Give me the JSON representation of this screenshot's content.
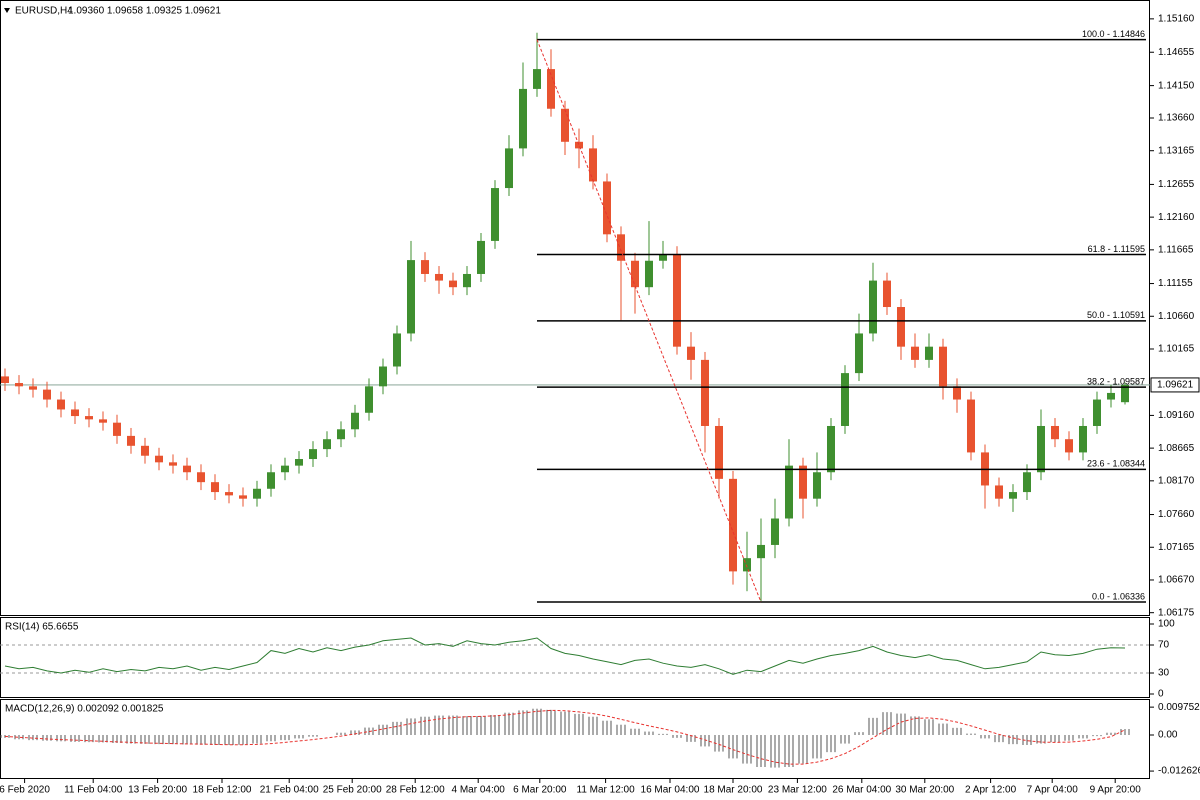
{
  "chart_data": [
    {
      "type": "candlestick",
      "title": "EURUSD,H4",
      "subtitle": "1.09360 1.09658 1.09325 1.09621",
      "up_color": "#3f8f2f",
      "down_color": "#e8532f",
      "xlim": [
        -0.357,
        81.786
      ],
      "xticks": [
        {
          "value": 1.4,
          "label": "6 Feb 2020"
        },
        {
          "value": 6.3,
          "label": "11 Feb 04:00"
        },
        {
          "value": 10.9,
          "label": "13 Feb 20:00"
        },
        {
          "value": 15.5,
          "label": "18 Feb 12:00"
        },
        {
          "value": 20.3,
          "label": "21 Feb 04:00"
        },
        {
          "value": 24.8,
          "label": "25 Feb 20:00"
        },
        {
          "value": 29.3,
          "label": "28 Feb 12:00"
        },
        {
          "value": 33.8,
          "label": "4 Mar 04:00"
        },
        {
          "value": 38.2,
          "label": "6 Mar 20:00"
        },
        {
          "value": 42.9,
          "label": "11 Mar 12:00"
        },
        {
          "value": 47.5,
          "label": "16 Mar 04:00"
        },
        {
          "value": 52.0,
          "label": "18 Mar 20:00"
        },
        {
          "value": 56.6,
          "label": "23 Mar 12:00"
        },
        {
          "value": 61.2,
          "label": "26 Mar 04:00"
        },
        {
          "value": 65.7,
          "label": "30 Mar 20:00"
        },
        {
          "value": 70.4,
          "label": "2 Apr 12:00"
        },
        {
          "value": 74.8,
          "label": "7 Apr 04:00"
        },
        {
          "value": 79.3,
          "label": "9 Apr 20:00"
        }
      ],
      "ylim": [
        1.0614,
        1.154
      ],
      "yticks": [
        {
          "value": 1.1516,
          "label": "1.15160"
        },
        {
          "value": 1.14655,
          "label": "1.14655"
        },
        {
          "value": 1.1415,
          "label": "1.14150"
        },
        {
          "value": 1.1366,
          "label": "1.13660"
        },
        {
          "value": 1.13165,
          "label": "1.13165"
        },
        {
          "value": 1.12655,
          "label": "1.12655"
        },
        {
          "value": 1.1216,
          "label": "1.12160"
        },
        {
          "value": 1.11665,
          "label": "1.11665"
        },
        {
          "value": 1.11155,
          "label": "1.11155"
        },
        {
          "value": 1.1066,
          "label": "1.10660"
        },
        {
          "value": 1.10165,
          "label": "1.10165"
        },
        {
          "value": 1.0916,
          "label": "1.09160"
        },
        {
          "value": 1.08665,
          "label": "1.08665"
        },
        {
          "value": 1.0817,
          "label": "1.08170"
        },
        {
          "value": 1.0766,
          "label": "1.07660"
        },
        {
          "value": 1.07165,
          "label": "1.07165"
        },
        {
          "value": 1.0667,
          "label": "1.06670"
        },
        {
          "value": 1.06175,
          "label": "1.06175"
        }
      ],
      "current_price": {
        "value": 1.09621,
        "label": "1.09621"
      },
      "open": [
        1.0975,
        1.0965,
        1.096,
        1.0955,
        1.094,
        1.0925,
        1.0915,
        1.091,
        1.0905,
        1.0885,
        1.087,
        1.0855,
        1.0845,
        1.084,
        1.083,
        1.0815,
        1.08,
        1.0795,
        1.079,
        1.0805,
        1.083,
        1.084,
        1.085,
        1.0865,
        1.088,
        1.0895,
        1.092,
        1.096,
        1.099,
        1.104,
        1.1151,
        1.113,
        1.112,
        1.111,
        1.113,
        1.118,
        1.126,
        1.132,
        1.141,
        1.144,
        1.138,
        1.133,
        1.132,
        1.127,
        1.119,
        1.115,
        1.111,
        1.115,
        1.116,
        1.102,
        1.1,
        1.09,
        1.082,
        1.068,
        1.07,
        1.072,
        1.076,
        1.084,
        1.079,
        1.083,
        1.09,
        1.098,
        1.104,
        1.112,
        1.108,
        1.102,
        1.1,
        1.102,
        1.096,
        1.094,
        1.086,
        1.081,
        1.079,
        1.08,
        1.083,
        1.09,
        1.088,
        1.086,
        1.09,
        1.094,
        1.0936
      ],
      "high": [
        1.0987,
        1.0977,
        1.0972,
        1.0967,
        1.0952,
        1.0937,
        1.0927,
        1.0922,
        1.0917,
        1.0897,
        1.0882,
        1.0867,
        1.0857,
        1.0852,
        1.0842,
        1.0827,
        1.0812,
        1.0807,
        1.0817,
        1.0842,
        1.0852,
        1.0862,
        1.0877,
        1.0892,
        1.0907,
        1.0932,
        1.0972,
        1.1002,
        1.1052,
        1.118,
        1.1163,
        1.1142,
        1.1132,
        1.1142,
        1.1192,
        1.1272,
        1.134,
        1.145,
        1.1495,
        1.147,
        1.1392,
        1.135,
        1.134,
        1.1282,
        1.1202,
        1.1162,
        1.121,
        1.118,
        1.1172,
        1.1042,
        1.1012,
        1.0912,
        1.0832,
        1.074,
        1.076,
        1.079,
        1.088,
        1.0852,
        1.086,
        1.0912,
        1.0992,
        1.107,
        1.1147,
        1.1132,
        1.1092,
        1.104,
        1.104,
        1.1032,
        1.0972,
        1.0952,
        1.0872,
        1.0822,
        1.0812,
        1.0842,
        1.0925,
        1.0912,
        1.0892,
        1.0912,
        1.0952,
        1.0962,
        1.09658
      ],
      "low": [
        1.0953,
        1.0948,
        1.0943,
        1.0928,
        1.0913,
        1.0903,
        1.0898,
        1.0893,
        1.0873,
        1.0858,
        1.0843,
        1.0833,
        1.0828,
        1.0818,
        1.0803,
        1.0788,
        1.0783,
        1.0778,
        1.0778,
        1.0793,
        1.0818,
        1.0828,
        1.0838,
        1.0853,
        1.0868,
        1.0883,
        1.0908,
        1.0948,
        1.0978,
        1.1028,
        1.1118,
        1.11,
        1.1098,
        1.1098,
        1.1118,
        1.1168,
        1.1248,
        1.1308,
        1.1398,
        1.1368,
        1.131,
        1.129,
        1.1258,
        1.1178,
        1.106,
        1.107,
        1.1098,
        1.1138,
        1.1008,
        1.097,
        1.086,
        1.079,
        1.066,
        1.065,
        1.0634,
        1.07,
        1.0748,
        1.076,
        1.0778,
        1.0818,
        1.0888,
        1.0968,
        1.1028,
        1.1068,
        1.1,
        1.0988,
        1.0988,
        1.094,
        1.092,
        1.0848,
        1.0775,
        1.0778,
        1.077,
        1.0788,
        1.0818,
        1.0868,
        1.0848,
        1.0848,
        1.0888,
        1.0928,
        1.09325
      ],
      "close": [
        1.0965,
        1.096,
        1.0955,
        1.094,
        1.0925,
        1.0915,
        1.091,
        1.0905,
        1.0885,
        1.087,
        1.0855,
        1.0845,
        1.084,
        1.083,
        1.0815,
        1.08,
        1.0795,
        1.079,
        1.0805,
        1.083,
        1.084,
        1.085,
        1.0865,
        1.088,
        1.0895,
        1.092,
        1.096,
        1.099,
        1.104,
        1.1151,
        1.113,
        1.112,
        1.111,
        1.113,
        1.118,
        1.126,
        1.132,
        1.141,
        1.144,
        1.138,
        1.133,
        1.132,
        1.127,
        1.119,
        1.115,
        1.111,
        1.115,
        1.116,
        1.102,
        1.1,
        1.09,
        1.082,
        1.068,
        1.07,
        1.072,
        1.076,
        1.084,
        1.079,
        1.083,
        1.09,
        1.098,
        1.104,
        1.112,
        1.108,
        1.102,
        1.1,
        1.102,
        1.096,
        1.094,
        1.086,
        1.081,
        1.079,
        1.08,
        1.083,
        1.09,
        1.088,
        1.086,
        1.09,
        1.094,
        1.095,
        1.09621
      ],
      "trend_line": {
        "x": [
          38,
          54
        ],
        "y": [
          1.14846,
          1.06336
        ],
        "color": "#e8332f"
      },
      "fib_levels": [
        {
          "value": 1.14846,
          "label": "100.0 - 1.14846"
        },
        {
          "value": 1.11595,
          "label": "61.8 - 1.11595"
        },
        {
          "value": 1.10591,
          "label": "50.0 - 1.10591"
        },
        {
          "value": 1.09587,
          "label": "38.2 - 1.09587"
        },
        {
          "value": 1.08344,
          "label": "23.6 - 1.08344"
        },
        {
          "value": 1.06336,
          "label": "0.0 - 1.06336"
        }
      ]
    },
    {
      "type": "line",
      "title": "RSI(14) 65.6655",
      "color": "#2e7d32",
      "ylim": [
        0,
        100
      ],
      "yticks": [
        100,
        70,
        30,
        0
      ],
      "levels": [
        70,
        30
      ],
      "values": [
        40,
        36,
        38,
        33,
        30,
        34,
        31,
        36,
        32,
        35,
        33,
        38,
        36,
        40,
        34,
        38,
        35,
        40,
        45,
        62,
        58,
        65,
        60,
        66,
        62,
        67,
        70,
        76,
        78,
        80,
        70,
        72,
        68,
        76,
        72,
        70,
        74,
        76,
        80,
        65,
        58,
        55,
        50,
        46,
        42,
        48,
        50,
        44,
        40,
        38,
        42,
        36,
        28,
        34,
        32,
        40,
        48,
        44,
        50,
        55,
        58,
        62,
        68,
        60,
        55,
        52,
        56,
        50,
        48,
        42,
        36,
        38,
        42,
        46,
        60,
        56,
        55,
        58,
        64,
        66,
        65.6655
      ]
    },
    {
      "type": "macd",
      "title": "MACD(12,26,9) 0.002092 0.001825",
      "ylim": [
        -0.0147,
        0.0119
      ],
      "yticks": [
        0.009752,
        {
          "value": 0,
          "label": "0.00"
        },
        -0.012626
      ],
      "series": [
        {
          "color": "#555555",
          "values": [
            -0.001,
            -0.0015,
            -0.0018,
            -0.002,
            -0.0022,
            -0.0024,
            -0.0025,
            -0.0026,
            -0.0028,
            -0.003,
            -0.0031,
            -0.0032,
            -0.0032,
            -0.0033,
            -0.0034,
            -0.0035,
            -0.0035,
            -0.0034,
            -0.003,
            -0.0022,
            -0.0018,
            -0.0012,
            -0.0006,
            0.0,
            0.0008,
            0.0016,
            0.0026,
            0.0036,
            0.0046,
            0.0058,
            0.0064,
            0.0068,
            0.0068,
            0.0066,
            0.0066,
            0.007,
            0.0078,
            0.0086,
            0.0092,
            0.0088,
            0.0082,
            0.0074,
            0.0064,
            0.005,
            0.0036,
            0.0022,
            0.0012,
            0.0004,
            -0.001,
            -0.0024,
            -0.004,
            -0.0058,
            -0.0082,
            -0.01,
            -0.0112,
            -0.0114,
            -0.0112,
            -0.01,
            -0.0082,
            -0.006,
            -0.003,
            0.001,
            0.006,
            0.008,
            0.0075,
            0.0065,
            0.0055,
            0.004,
            0.0025,
            0.0005,
            -0.0012,
            -0.0025,
            -0.0032,
            -0.0035,
            -0.003,
            -0.0025,
            -0.002,
            -0.0012,
            -0.0004,
            0.0008,
            0.002092
          ]
        },
        {
          "color": "#e8332f",
          "values": [
            -0.0005,
            -0.0008,
            -0.0011,
            -0.0014,
            -0.0016,
            -0.0018,
            -0.002,
            -0.0022,
            -0.0024,
            -0.0026,
            -0.0028,
            -0.0029,
            -0.003,
            -0.0031,
            -0.0032,
            -0.0033,
            -0.0034,
            -0.0034,
            -0.0033,
            -0.003,
            -0.0026,
            -0.0021,
            -0.0016,
            -0.001,
            -0.0004,
            0.0004,
            0.0012,
            0.0021,
            0.003,
            0.004,
            0.0049,
            0.0056,
            0.0061,
            0.0064,
            0.0065,
            0.0067,
            0.0071,
            0.0077,
            0.0083,
            0.0086,
            0.0085,
            0.0081,
            0.0075,
            0.0066,
            0.0055,
            0.0043,
            0.0032,
            0.0022,
            0.0011,
            -0.0002,
            -0.0017,
            -0.0033,
            -0.0051,
            -0.0068,
            -0.0083,
            -0.0095,
            -0.0102,
            -0.0102,
            -0.0095,
            -0.0083,
            -0.0065,
            -0.004,
            -0.001,
            0.002,
            0.0045,
            0.0058,
            0.006,
            0.0055,
            0.0045,
            0.0032,
            0.0017,
            0.0002,
            -0.001,
            -0.002,
            -0.0025,
            -0.0026,
            -0.0025,
            -0.0021,
            -0.0015,
            -0.0006,
            0.001825
          ]
        }
      ]
    }
  ]
}
